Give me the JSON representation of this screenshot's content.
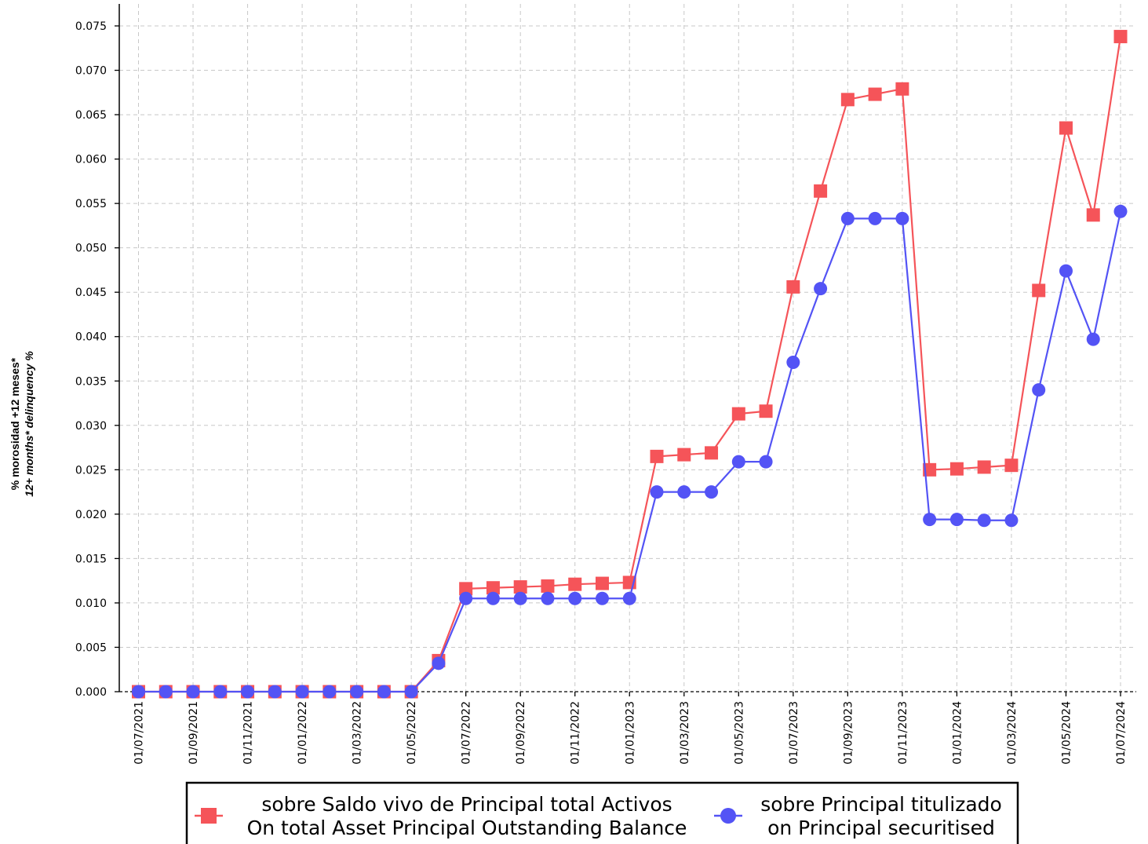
{
  "chart_data": {
    "type": "line",
    "title": "",
    "xlabel": "",
    "ylabel": [
      "% morosidad +12 meses*",
      "12+ months* delinquency %"
    ],
    "x": [
      "01/07/2021",
      "01/08/2021",
      "01/09/2021",
      "01/10/2021",
      "01/11/2021",
      "01/12/2021",
      "01/01/2022",
      "01/02/2022",
      "01/03/2022",
      "01/04/2022",
      "01/05/2022",
      "01/06/2022",
      "01/07/2022",
      "01/08/2022",
      "01/09/2022",
      "01/10/2022",
      "01/11/2022",
      "01/12/2022",
      "01/01/2023",
      "01/02/2023",
      "01/03/2023",
      "01/04/2023",
      "01/05/2023",
      "01/06/2023",
      "01/07/2023",
      "01/08/2023",
      "01/09/2023",
      "01/10/2023",
      "01/11/2023",
      "01/12/2023",
      "01/01/2024",
      "01/02/2024",
      "01/03/2024",
      "01/04/2024",
      "01/05/2024",
      "01/06/2024",
      "01/07/2024"
    ],
    "x_tick_labels": [
      "01/07/2021",
      "01/09/2021",
      "01/11/2021",
      "01/01/2022",
      "01/03/2022",
      "01/05/2022",
      "01/07/2022",
      "01/09/2022",
      "01/11/2022",
      "01/01/2023",
      "01/03/2023",
      "01/05/2023",
      "01/07/2023",
      "01/09/2023",
      "01/11/2023",
      "01/01/2024",
      "01/03/2024",
      "01/05/2024",
      "01/07/2024"
    ],
    "y_tick_labels": [
      "0.000",
      "0.005",
      "0.010",
      "0.015",
      "0.020",
      "0.025",
      "0.030",
      "0.035",
      "0.040",
      "0.045",
      "0.050",
      "0.055",
      "0.060",
      "0.065",
      "0.070",
      "0.075"
    ],
    "ylim": [
      0,
      0.0775
    ],
    "grid": true,
    "legend_position": "bottom",
    "series": [
      {
        "name": [
          "sobre Saldo vivo de Principal total Activos",
          "On total Asset Principal Outstanding Balance"
        ],
        "color": "#f55459",
        "marker": "square",
        "values": [
          0,
          0,
          0,
          0,
          0,
          0,
          0,
          0,
          0,
          0,
          0,
          0.0035,
          0.0116,
          0.0117,
          0.0118,
          0.0119,
          0.0121,
          0.0122,
          0.0123,
          0.0265,
          0.0267,
          0.0269,
          0.0313,
          0.0316,
          0.0456,
          0.0564,
          0.0667,
          0.0673,
          0.0679,
          0.025,
          0.0251,
          0.0253,
          0.0255,
          0.0452,
          0.0635,
          0.0537,
          0.0738
        ]
      },
      {
        "name": [
          "sobre Principal titulizado",
          "on Principal securitised"
        ],
        "color": "#5353f5",
        "marker": "circle",
        "values": [
          0,
          0,
          0,
          0,
          0,
          0,
          0,
          0,
          0,
          0,
          0,
          0.0032,
          0.0105,
          0.0105,
          0.0105,
          0.0105,
          0.0105,
          0.0105,
          0.0105,
          0.0225,
          0.0225,
          0.0225,
          0.0259,
          0.0259,
          0.0371,
          0.0454,
          0.0533,
          0.0533,
          0.0533,
          0.0194,
          0.0194,
          0.0193,
          0.0193,
          0.034,
          0.0474,
          0.0397,
          0.0541
        ]
      }
    ]
  }
}
